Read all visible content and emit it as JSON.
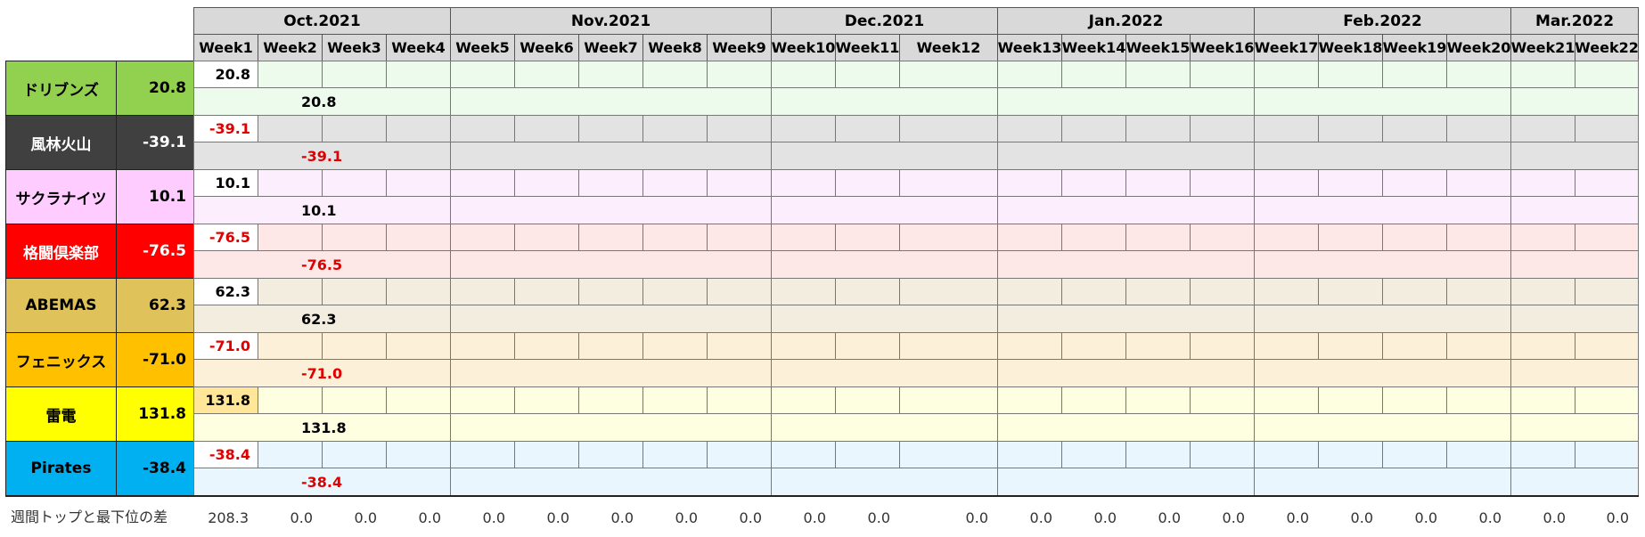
{
  "months": [
    {
      "label": "Oct.2021",
      "weeks": 4
    },
    {
      "label": "Nov.2021",
      "weeks": 5
    },
    {
      "label": "Dec.2021",
      "weeks": 3
    },
    {
      "label": "Jan.2022",
      "weeks": 4
    },
    {
      "label": "Feb.2022",
      "weeks": 4
    },
    {
      "label": "Mar.2022",
      "weeks": 2
    }
  ],
  "weeks": [
    "Week1",
    "Week2",
    "Week3",
    "Week4",
    "Week5",
    "Week6",
    "Week7",
    "Week8",
    "Week9",
    "Week10",
    "Week11",
    "Week12",
    "Week13",
    "Week14",
    "Week15",
    "Week16",
    "Week17",
    "Week18",
    "Week19",
    "Week20",
    "Week21",
    "Week22"
  ],
  "teams": [
    {
      "name": "ドリブンズ",
      "total": "20.8",
      "week1": "20.8",
      "month1": "20.8",
      "negative": false,
      "color": "#92d050",
      "text_color": "#000000",
      "fill": "#ecfbec",
      "week1_fill": "#ffffff"
    },
    {
      "name": "風林火山",
      "total": "-39.1",
      "week1": "-39.1",
      "month1": "-39.1",
      "negative": true,
      "color": "#404040",
      "text_color": "#ffffff",
      "fill": "#e3e3e3",
      "week1_fill": "#ffffff"
    },
    {
      "name": "サクラナイツ",
      "total": "10.1",
      "week1": "10.1",
      "month1": "10.1",
      "negative": false,
      "color": "#ffccff",
      "text_color": "#000000",
      "fill": "#fdeefd",
      "week1_fill": "#ffffff"
    },
    {
      "name": "格闘倶楽部",
      "total": "-76.5",
      "week1": "-76.5",
      "month1": "-76.5",
      "negative": true,
      "color": "#ff0000",
      "text_color": "#ffffff",
      "fill": "#fde7e7",
      "week1_fill": "#ffffff"
    },
    {
      "name": "ABEMAS",
      "total": "62.3",
      "week1": "62.3",
      "month1": "62.3",
      "negative": false,
      "color": "#dfc35a",
      "text_color": "#000000",
      "fill": "#f3ede0",
      "week1_fill": "#ffffff"
    },
    {
      "name": "フェニックス",
      "total": "-71.0",
      "week1": "-71.0",
      "month1": "-71.0",
      "negative": true,
      "color": "#ffc000",
      "text_color": "#000000",
      "fill": "#fdf0d8",
      "week1_fill": "#ffffff"
    },
    {
      "name": "雷電",
      "total": "131.8",
      "week1": "131.8",
      "month1": "131.8",
      "negative": false,
      "color": "#ffff00",
      "text_color": "#000000",
      "fill": "#fefee0",
      "week1_fill": "#ffe699"
    },
    {
      "name": "Pirates",
      "total": "-38.4",
      "week1": "-38.4",
      "month1": "-38.4",
      "negative": true,
      "color": "#00b0f0",
      "text_color": "#000000",
      "fill": "#eaf6fd",
      "week1_fill": "#ffffff"
    }
  ],
  "footer": {
    "label": "週間トップと最下位の差",
    "values": [
      "208.3",
      "0.0",
      "0.0",
      "0.0",
      "0.0",
      "0.0",
      "0.0",
      "0.0",
      "0.0",
      "0.0",
      "0.0",
      "0.0",
      "0.0",
      "0.0",
      "0.0",
      "0.0",
      "0.0",
      "0.0",
      "0.0",
      "0.0",
      "0.0",
      "0.0"
    ]
  }
}
